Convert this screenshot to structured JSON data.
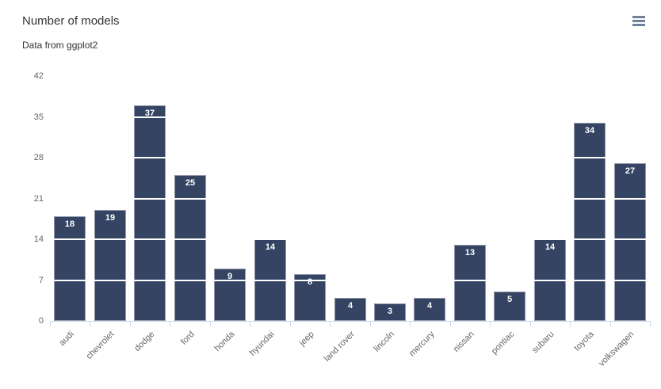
{
  "header": {
    "title": "Number of models",
    "subtitle": "Data from ggplot2",
    "menu_icon": "hamburger-menu"
  },
  "chart_data": {
    "type": "bar",
    "title": "Number of models",
    "subtitle": "Data from ggplot2",
    "categories": [
      "audi",
      "chevrolet",
      "dodge",
      "ford",
      "honda",
      "hyundai",
      "jeep",
      "land rover",
      "lincoln",
      "mercury",
      "nissan",
      "pontiac",
      "subaru",
      "toyota",
      "volkswagen"
    ],
    "values": [
      18,
      19,
      37,
      25,
      9,
      14,
      8,
      4,
      3,
      4,
      13,
      5,
      14,
      34,
      27
    ],
    "xlabel": "",
    "ylabel": "",
    "ylim": [
      0,
      42
    ],
    "yticks": [
      0,
      7,
      14,
      21,
      28,
      35,
      42
    ],
    "grid": "horizontal white gridlines drawn over bars",
    "legend": "none",
    "data_labels": "white bold values inside top of each bar"
  },
  "colors": {
    "bar": "#354463",
    "title_text": "#333333",
    "axis_label": "#666666",
    "axis_line": "#ccd6eb",
    "grid_line": "#ffffff",
    "data_label": "#ffffff",
    "menu_icon": "#6e8197",
    "background": "#ffffff"
  }
}
